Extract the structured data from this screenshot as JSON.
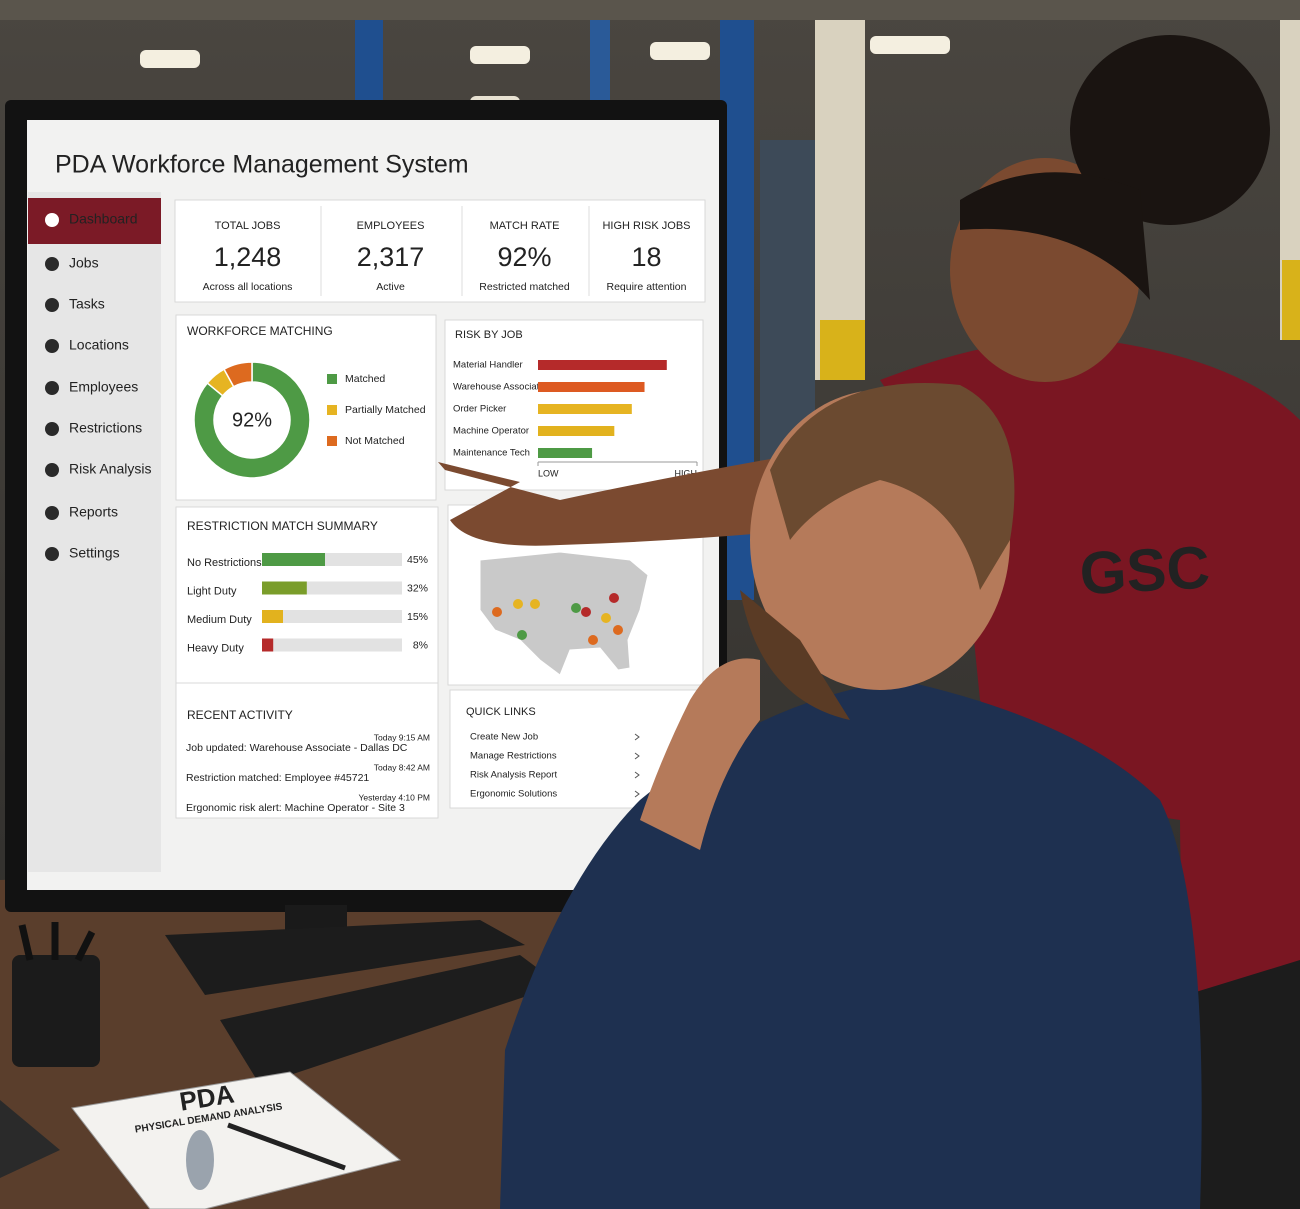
{
  "header": {
    "title": "PDA Workforce Management System"
  },
  "sidebar": {
    "active": 0,
    "items": [
      "Dashboard",
      "Jobs",
      "Tasks",
      "Locations",
      "Employees",
      "Restrictions",
      "Risk Analysis",
      "Reports",
      "Settings"
    ]
  },
  "kpis": [
    {
      "label": "TOTAL JOBS",
      "value": "1,248",
      "note": "Across all locations"
    },
    {
      "label": "EMPLOYEES",
      "value": "2,317",
      "note": "Active"
    },
    {
      "label": "MATCH RATE",
      "value": "92%",
      "note": "Restricted matched"
    },
    {
      "label": "HIGH RISK JOBS",
      "value": "18",
      "note": "Require attention"
    }
  ],
  "workforce_matching": {
    "title": "WORKFORCE MATCHING",
    "center_label": "92%",
    "segments": [
      {
        "name": "Matched",
        "color": "#4e9a45",
        "value": 86
      },
      {
        "name": "Partially Matched",
        "color": "#e6b422",
        "value": 6
      },
      {
        "name": "Not Matched",
        "color": "#dd6a1f",
        "value": 8
      }
    ]
  },
  "risk_by_job": {
    "title": "RISK BY JOB",
    "xlim": [
      0,
      100
    ],
    "xticks": [
      {
        "value": 0,
        "label": "LOW"
      },
      {
        "value": 100,
        "label": "HIGH"
      }
    ],
    "jobs": [
      {
        "name": "Material Handler",
        "color": "#b52a2a",
        "value": 81
      },
      {
        "name": "Warehouse Associate",
        "color": "#dd5a22",
        "value": 67
      },
      {
        "name": "Order Picker",
        "color": "#e6b422",
        "value": 59
      },
      {
        "name": "Machine Operator",
        "color": "#e2b21e",
        "value": 48
      },
      {
        "name": "Maintenance Tech",
        "color": "#4e9a45",
        "value": 34
      }
    ]
  },
  "restriction_summary": {
    "title": "RESTRICTION MATCH SUMMARY",
    "xlim": [
      0,
      100
    ],
    "rows": [
      {
        "name": "No Restrictions",
        "color": "#4e9a45",
        "value": 45,
        "value_label": "45%"
      },
      {
        "name": "Light Duty",
        "color": "#7a9d2a",
        "value": 32,
        "value_label": "32%"
      },
      {
        "name": "Medium Duty",
        "color": "#e2b21e",
        "value": 15,
        "value_label": "15%"
      },
      {
        "name": "Heavy Duty",
        "color": "#b52a2a",
        "value": 8,
        "value_label": "8%"
      }
    ]
  },
  "recent_activity": {
    "title": "RECENT ACTIVITY",
    "items": [
      {
        "text": "Job updated: Warehouse Associate - Dallas DC",
        "time": "Today 9:15 AM"
      },
      {
        "text": "Restriction matched: Employee #45721",
        "time": "Today 8:42 AM"
      },
      {
        "text": "Ergonomic risk alert: Machine Operator - Site 3",
        "time": "Yesterday 4:10 PM"
      }
    ]
  },
  "quick_links": {
    "title": "QUICK LINKS",
    "items": [
      "Create New Job",
      "Manage Restrictions",
      "Risk Analysis Report",
      "Ergonomic Solutions"
    ]
  },
  "notebook": {
    "title": "PDA",
    "subtitle": "PHYSICAL DEMAND ANALYSIS"
  },
  "shirt": {
    "logo": "GSC"
  }
}
